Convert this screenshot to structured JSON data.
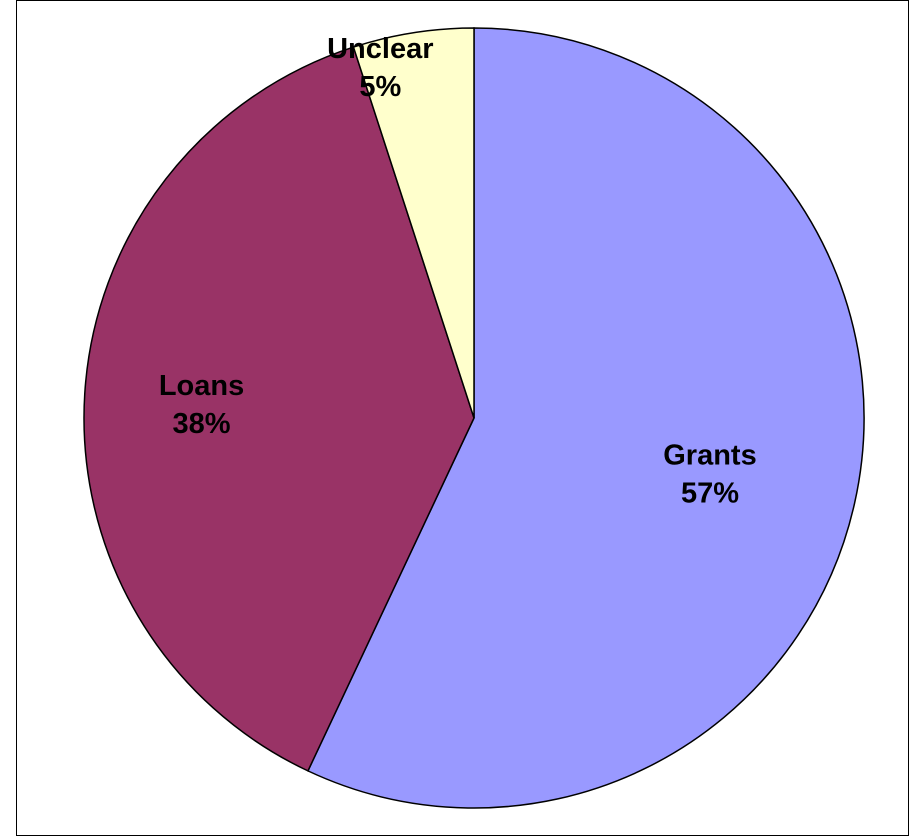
{
  "chart_data": {
    "type": "pie",
    "title": "",
    "slices": [
      {
        "label": "Grants",
        "value": 57,
        "display": "57%",
        "color": "#9999ff"
      },
      {
        "label": "Loans",
        "value": 38,
        "display": "38%",
        "color": "#993366"
      },
      {
        "label": "Unclear",
        "value": 5,
        "display": "5%",
        "color": "#ffffcc"
      }
    ],
    "start_angle_deg": 0,
    "direction": "clockwise",
    "legend": "none",
    "data_labels": "category and percent"
  }
}
